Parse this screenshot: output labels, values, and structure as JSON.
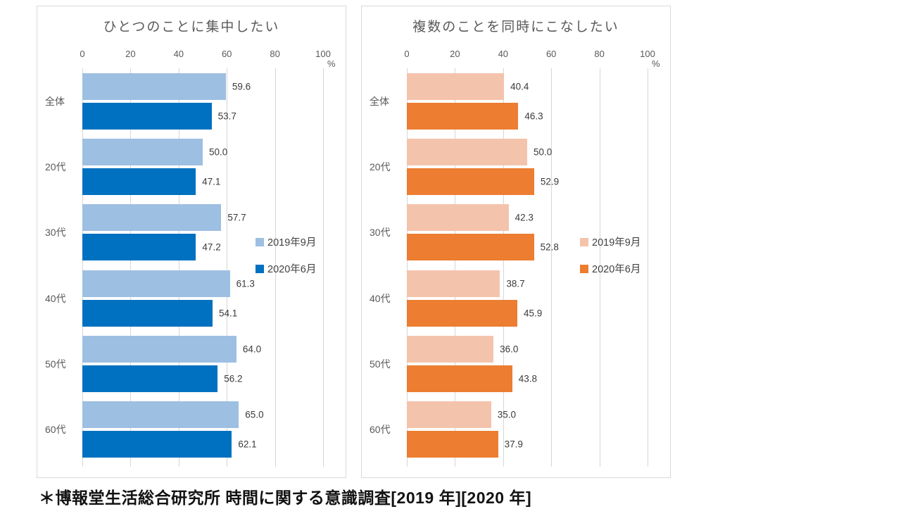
{
  "footnote": "＊博報堂生活総合研究所 時間に関する意識調査[2019 年][2020 年]",
  "chart_data": [
    {
      "type": "bar",
      "orientation": "horizontal",
      "title": "ひとつのことに集中したい",
      "categories": [
        "全体",
        "20代",
        "30代",
        "40代",
        "50代",
        "60代"
      ],
      "series": [
        {
          "name": "2019年9月",
          "color": "#9dbfe2",
          "values": [
            59.6,
            50.0,
            57.7,
            61.3,
            64.0,
            65.0
          ]
        },
        {
          "name": "2020年6月",
          "color": "#0071c0",
          "values": [
            53.7,
            47.1,
            47.2,
            54.1,
            56.2,
            62.1
          ]
        }
      ],
      "axis": {
        "ticks": [
          0,
          20,
          40,
          60,
          80,
          100
        ],
        "unit": "%",
        "xlim": [
          0,
          100
        ]
      },
      "grid": "vertical",
      "legend_position": "right-middle-inside"
    },
    {
      "type": "bar",
      "orientation": "horizontal",
      "title": "複数のことを同時にこなしたい",
      "categories": [
        "全体",
        "20代",
        "30代",
        "40代",
        "50代",
        "60代"
      ],
      "series": [
        {
          "name": "2019年9月",
          "color": "#f4c3ac",
          "values": [
            40.4,
            50.0,
            42.3,
            38.7,
            36.0,
            35.0
          ]
        },
        {
          "name": "2020年6月",
          "color": "#ec7d31",
          "values": [
            46.3,
            52.9,
            52.8,
            45.9,
            43.8,
            37.9
          ]
        }
      ],
      "axis": {
        "ticks": [
          0,
          20,
          40,
          60,
          80,
          100
        ],
        "unit": "%",
        "xlim": [
          0,
          100
        ]
      },
      "grid": "vertical",
      "legend_position": "right-middle-inside"
    }
  ]
}
